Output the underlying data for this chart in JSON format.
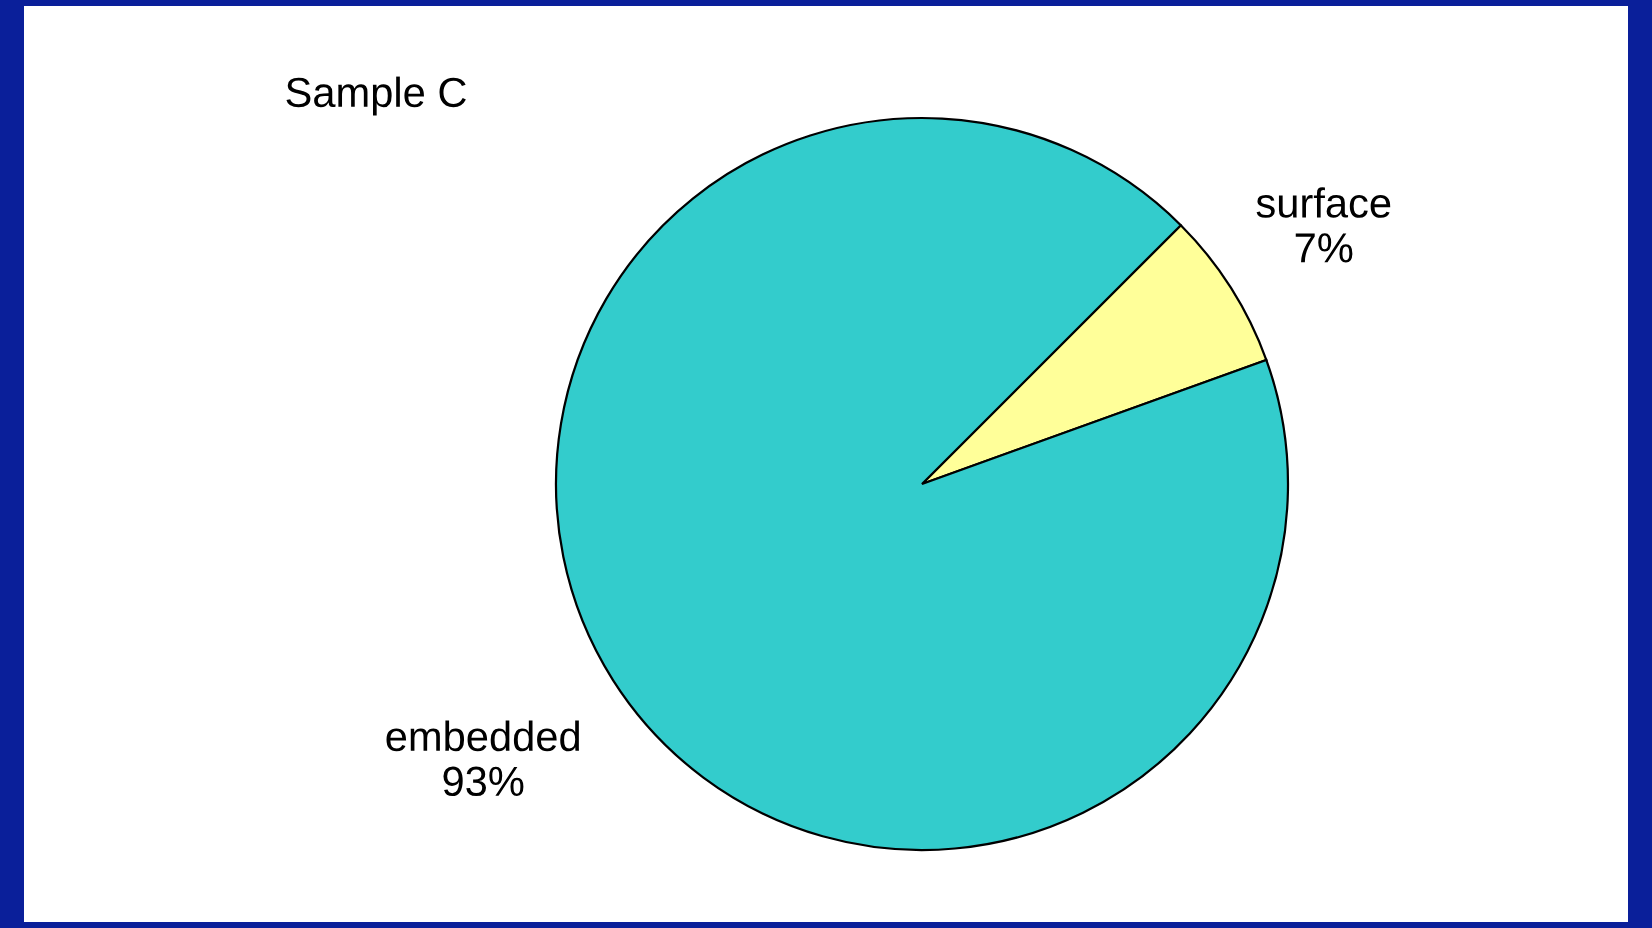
{
  "chart_data": {
    "type": "pie",
    "title": "Sample C",
    "categories": [
      "surface",
      "embedded"
    ],
    "values": [
      7,
      93
    ],
    "colors": [
      "#ffff99",
      "#33cccc"
    ],
    "value_labels": [
      "7%",
      "93%"
    ],
    "legend": false
  }
}
